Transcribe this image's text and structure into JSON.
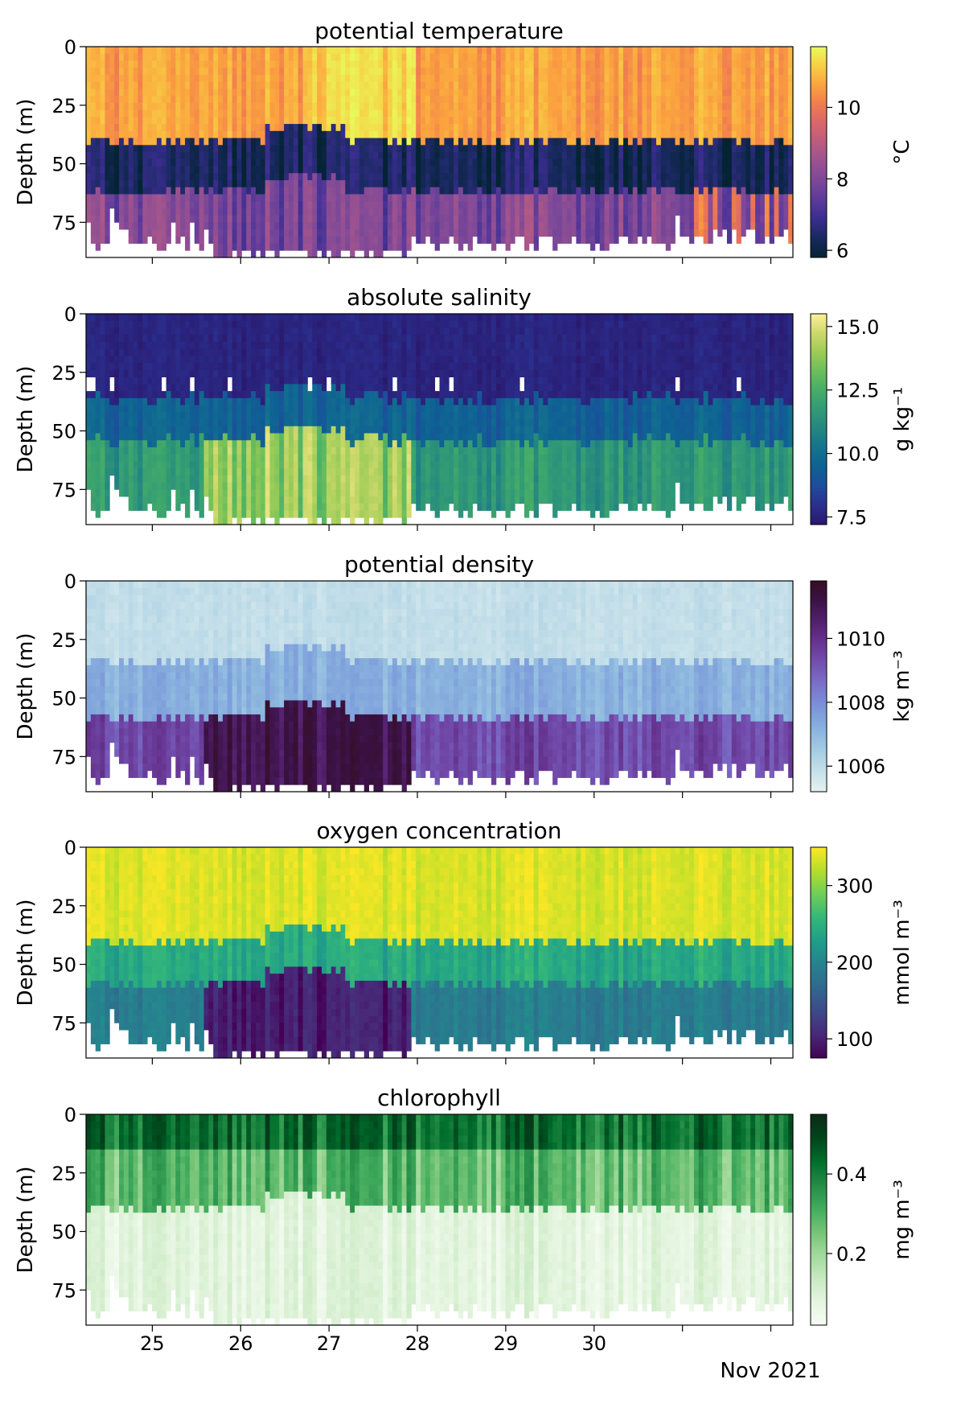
{
  "figure": {
    "date_label": "Nov 2021",
    "ylabel": "Depth (m)",
    "x_tick_labels": [
      "25",
      "26",
      "27",
      "28",
      "29",
      "30",
      ""
    ],
    "y_tick_labels": [
      "0",
      "25",
      "50",
      "75"
    ]
  },
  "chart_data": [
    {
      "type": "heatmap",
      "title": "potential temperature",
      "xlabel": "",
      "ylabel": "Depth (m)",
      "x_range": [
        "2021-10-24T06:00",
        "2021-11-01T06:00"
      ],
      "ylim": [
        90,
        0
      ],
      "y_ticks": [
        0,
        25,
        50,
        75
      ],
      "colorbar": {
        "label": "°C",
        "colormap": "thermal",
        "range": [
          5.8,
          11.7
        ],
        "ticks": [
          6,
          8,
          10
        ],
        "tick_labels": [
          "6",
          "8",
          "10"
        ]
      },
      "profiles_approx": {
        "surface_value": 11.0,
        "pycnocline_depth_m": 38,
        "deep_value": 7.6
      }
    },
    {
      "type": "heatmap",
      "title": "absolute salinity",
      "xlabel": "",
      "ylabel": "Depth (m)",
      "x_range": [
        "2021-10-24T06:00",
        "2021-11-01T06:00"
      ],
      "ylim": [
        90,
        0
      ],
      "y_ticks": [
        0,
        25,
        50,
        75
      ],
      "colorbar": {
        "label": "g kg⁻¹",
        "colormap": "haline",
        "range": [
          7.2,
          15.5
        ],
        "ticks": [
          7.5,
          10.0,
          12.5,
          15.0
        ],
        "tick_labels": [
          "7.5",
          "10.0",
          "12.5",
          "15.0"
        ]
      },
      "profiles_approx": {
        "surface_value": 7.5,
        "mid_value": 10.5,
        "deep_value": 12.0,
        "deep_value_oct26_27": 15.0
      }
    },
    {
      "type": "heatmap",
      "title": "potential density",
      "xlabel": "",
      "ylabel": "Depth (m)",
      "x_range": [
        "2021-10-24T06:00",
        "2021-11-01T06:00"
      ],
      "ylim": [
        90,
        0
      ],
      "y_ticks": [
        0,
        25,
        50,
        75
      ],
      "colorbar": {
        "label": "kg m⁻³",
        "colormap": "dense",
        "range": [
          1005.2,
          1011.8
        ],
        "ticks": [
          1006,
          1008,
          1010
        ],
        "tick_labels": [
          "1006",
          "1008",
          "1010"
        ]
      },
      "profiles_approx": {
        "surface_value": 1005.9,
        "mid_value": 1007.5,
        "deep_value": 1009.8,
        "deep_value_oct26_27": 1011.5
      }
    },
    {
      "type": "heatmap",
      "title": "oxygen concentration",
      "xlabel": "",
      "ylabel": "Depth (m)",
      "x_range": [
        "2021-10-24T06:00",
        "2021-11-01T06:00"
      ],
      "ylim": [
        90,
        0
      ],
      "y_ticks": [
        0,
        25,
        50,
        75
      ],
      "colorbar": {
        "label": "mmol m⁻³",
        "colormap": "viridis",
        "range": [
          75,
          350
        ],
        "ticks": [
          100,
          200,
          300
        ],
        "tick_labels": [
          "100",
          "200",
          "300"
        ]
      },
      "profiles_approx": {
        "surface_value": 340,
        "mid_value": 230,
        "deep_value": 190,
        "deep_value_oct26_27": 85
      }
    },
    {
      "type": "heatmap",
      "title": "chlorophyll",
      "xlabel": "Nov 2021",
      "ylabel": "Depth (m)",
      "x_range": [
        "2021-10-24T06:00",
        "2021-11-01T06:00"
      ],
      "ylim": [
        90,
        0
      ],
      "y_ticks": [
        0,
        25,
        50,
        75
      ],
      "colorbar": {
        "label": "mg m⁻³",
        "colormap": "greens",
        "range": [
          0.02,
          0.55
        ],
        "ticks": [
          0.2,
          0.4
        ],
        "tick_labels": [
          "0.2",
          "0.4"
        ]
      },
      "profiles_approx": {
        "surface_value": 0.45,
        "mid_value": 0.3,
        "deep_value": 0.1
      }
    }
  ]
}
